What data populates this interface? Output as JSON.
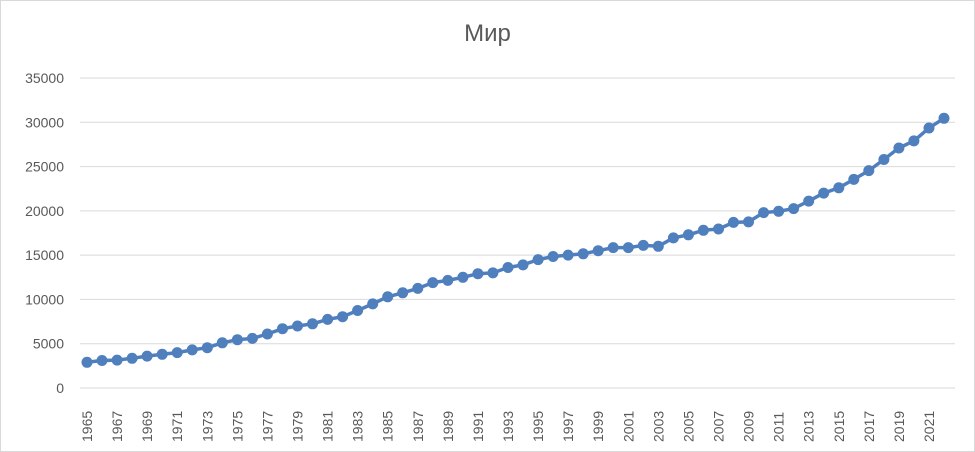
{
  "chart_data": {
    "type": "line",
    "title": "Мир",
    "xlabel": "",
    "ylabel": "",
    "ylim": [
      0,
      35000
    ],
    "yticks": [
      0,
      5000,
      10000,
      15000,
      20000,
      25000,
      30000,
      35000
    ],
    "xticks_shown": [
      1965,
      1967,
      1969,
      1971,
      1973,
      1975,
      1977,
      1979,
      1981,
      1983,
      1985,
      1987,
      1989,
      1991,
      1993,
      1995,
      1997,
      1999,
      2001,
      2003,
      2005,
      2007,
      2009,
      2011,
      2013,
      2015,
      2017,
      2019,
      2021
    ],
    "grid": true,
    "legend": "none",
    "series_color": "#4f7fbd",
    "x": [
      1965,
      1966,
      1967,
      1968,
      1969,
      1970,
      1971,
      1972,
      1973,
      1974,
      1975,
      1976,
      1977,
      1978,
      1979,
      1980,
      1981,
      1982,
      1983,
      1984,
      1985,
      1986,
      1987,
      1988,
      1989,
      1990,
      1991,
      1992,
      1993,
      1994,
      1995,
      1996,
      1997,
      1998,
      1999,
      2000,
      2001,
      2002,
      2003,
      2004,
      2005,
      2006,
      2007,
      2008,
      2009,
      2010,
      2011,
      2012,
      2013,
      2014,
      2015,
      2016,
      2017,
      2018,
      2019,
      2020,
      2021,
      2022
    ],
    "values": [
      2900,
      3100,
      3150,
      3350,
      3600,
      3800,
      4000,
      4300,
      4550,
      5100,
      5450,
      5600,
      6100,
      6700,
      7000,
      7250,
      7750,
      8050,
      8750,
      9500,
      10300,
      10750,
      11250,
      11900,
      12150,
      12500,
      12900,
      13000,
      13600,
      13900,
      14500,
      14850,
      15000,
      15150,
      15500,
      15850,
      15850,
      16100,
      16000,
      16950,
      17300,
      17800,
      17950,
      18700,
      18750,
      19800,
      19950,
      20250,
      21100,
      22000,
      22600,
      23550,
      24550,
      25800,
      27100,
      27900,
      29350,
      30450
    ]
  }
}
